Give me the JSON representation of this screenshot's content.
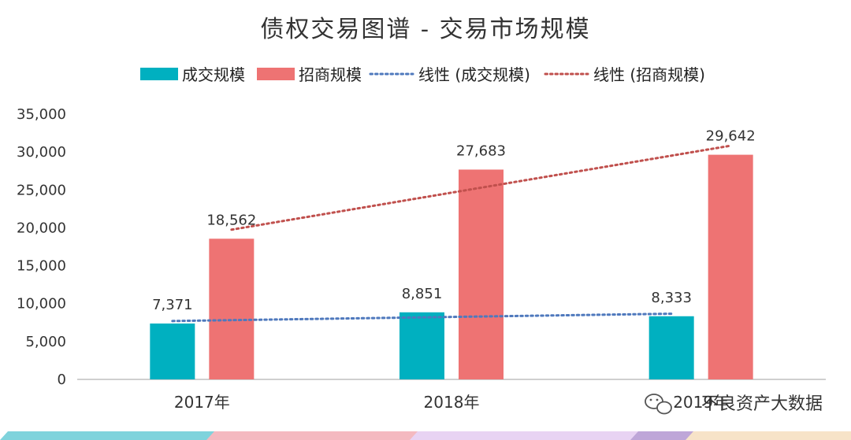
{
  "chart_data": {
    "type": "bar",
    "title": "债权交易图谱 - 交易市场规模",
    "categories": [
      "2017年",
      "2018年",
      "2019年"
    ],
    "series": [
      {
        "name": "成交规模",
        "values": [
          7371,
          8851,
          8333
        ],
        "labels": [
          "7,371",
          "8,851",
          "8,333"
        ],
        "color": "#00B0C0"
      },
      {
        "name": "招商规模",
        "values": [
          18562,
          27683,
          29642
        ],
        "labels": [
          "18,562",
          "27,683",
          "29,642"
        ],
        "color": "#EE7373"
      }
    ],
    "trendlines": [
      {
        "name": "线性 (成交规模)",
        "of": "成交规模",
        "color": "#4F79BD",
        "style": "dotted"
      },
      {
        "name": "线性 (招商规模)",
        "of": "招商规模",
        "color": "#C0504D",
        "style": "dotted"
      }
    ],
    "ylim": [
      0,
      35000
    ],
    "yticks": [
      0,
      5000,
      10000,
      15000,
      20000,
      25000,
      30000,
      35000
    ],
    "ytick_labels": [
      "0",
      "5,000",
      "10,000",
      "15,000",
      "20,000",
      "25,000",
      "30,000",
      "35,000"
    ],
    "xlabel": "",
    "ylabel": "",
    "legend_position": "top",
    "grid": false
  },
  "watermark": {
    "text": "不良资产大数据",
    "icon": "wechat-icon"
  },
  "footer_stripe_colors": [
    "#7FD3DC",
    "#F4B9C0",
    "#E8D3F3",
    "#BEA6D8",
    "#F7E3C8"
  ]
}
